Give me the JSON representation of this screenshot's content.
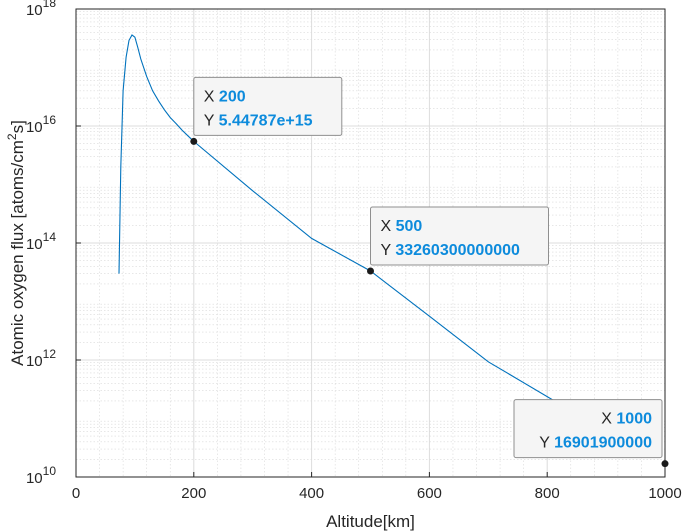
{
  "chart_data": {
    "type": "line",
    "xlabel": "Altitude[km]",
    "ylabel_main": "Atomic oxygen flux [atoms/cm",
    "ylabel_sup": "2",
    "ylabel_end": "s]",
    "xlim": [
      0,
      1000
    ],
    "ylim": [
      10000000000.0,
      1e+18
    ],
    "yscale": "log",
    "grid": true,
    "minor_grid": true,
    "xticks": [
      "0",
      "200",
      "400",
      "600",
      "800",
      "1000"
    ],
    "yticks": [
      {
        "base": "10",
        "exp": "10"
      },
      {
        "base": "10",
        "exp": "12"
      },
      {
        "base": "10",
        "exp": "14"
      },
      {
        "base": "10",
        "exp": "16"
      },
      {
        "base": "10",
        "exp": "18"
      }
    ],
    "series": [
      {
        "color": "#0072bd",
        "points": [
          [
            73,
            30000000000000.0
          ],
          [
            76,
            2000000000000000.0
          ],
          [
            80,
            4e+16
          ],
          [
            85,
            1.5e+17
          ],
          [
            90,
            2.9e+17
          ],
          [
            95,
            3.6e+17
          ],
          [
            100,
            3.3e+17
          ],
          [
            105,
            2.2e+17
          ],
          [
            110,
            1.4e+17
          ],
          [
            120,
            7e+16
          ],
          [
            130,
            4e+16
          ],
          [
            140,
            2.7e+16
          ],
          [
            150,
            1.9e+16
          ],
          [
            160,
            1.4e+16
          ],
          [
            170,
            1.1e+16
          ],
          [
            180,
            8500000000000000.0
          ],
          [
            190,
            6800000000000000.0
          ],
          [
            200,
            5447870000000000.0
          ],
          [
            300,
            780000000000000.0
          ],
          [
            400,
            120000000000000.0
          ],
          [
            500,
            33260300000000.0
          ],
          [
            600,
            5600000000000.0
          ],
          [
            700,
            930000000000.0
          ],
          [
            820,
            180000000000.0
          ]
        ]
      }
    ],
    "datatips": [
      {
        "x_label": "X",
        "x_value": "200",
        "y_label": "Y",
        "y_value": "5.44787e+15",
        "x": 200,
        "y": 5447870000000000.0,
        "align": "left"
      },
      {
        "x_label": "X",
        "x_value": "500",
        "y_label": "Y",
        "y_value": "33260300000000",
        "x": 500,
        "y": 33260300000000.0,
        "align": "left"
      },
      {
        "x_label": "X",
        "x_value": "1000",
        "y_label": "Y",
        "y_value": "16901900000",
        "x": 1000,
        "y": 16901900000.0,
        "align": "right"
      }
    ]
  }
}
